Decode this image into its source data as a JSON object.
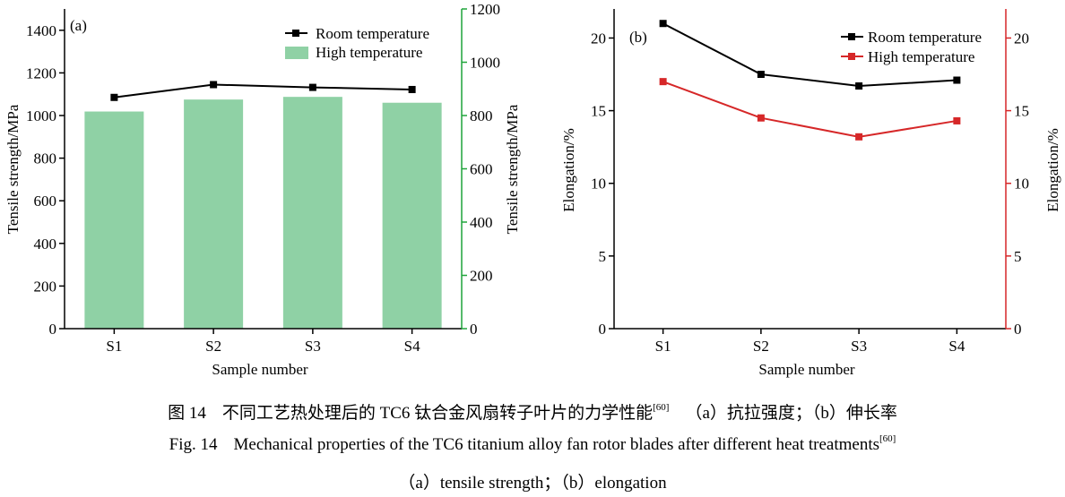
{
  "chart_data": [
    {
      "type": "bar+line",
      "panel_label": "(a)",
      "categories": [
        "S1",
        "S2",
        "S3",
        "S4"
      ],
      "xlabel": "Sample number",
      "ylabel_left": "Tensile strength/MPa",
      "ylabel_right": "Tensile strength/MPa",
      "ylim_left": [
        0,
        1500
      ],
      "yticks_left": [
        "0",
        "200",
        "400",
        "600",
        "800",
        "1000",
        "1200",
        "1400"
      ],
      "ylim_right": [
        0,
        1200
      ],
      "yticks_right": [
        "0",
        "200",
        "400",
        "600",
        "800",
        "1000",
        "1200"
      ],
      "legend_position": "top-right",
      "series": [
        {
          "name": "Room temperature",
          "kind": "line",
          "axis": "left",
          "color": "#000000",
          "values": [
            1085,
            1145,
            1132,
            1122
          ]
        },
        {
          "name": "High temperature",
          "kind": "bar",
          "axis": "right",
          "color": "#8fd1a5",
          "values": [
            815,
            860,
            870,
            848
          ]
        }
      ],
      "right_axis_color": "#1fa43a"
    },
    {
      "type": "line",
      "panel_label": "(b)",
      "categories": [
        "S1",
        "S2",
        "S3",
        "S4"
      ],
      "xlabel": "Sample number",
      "ylabel_left": "Elongation/%",
      "ylabel_right": "Elongation/%",
      "ylim": [
        0,
        22
      ],
      "yticks": [
        "0",
        "5",
        "10",
        "15",
        "20"
      ],
      "legend_position": "top-right",
      "series": [
        {
          "name": "Room temperature",
          "color": "#000000",
          "values": [
            21.0,
            17.5,
            16.7,
            17.1
          ]
        },
        {
          "name": "High temperature",
          "color": "#d62728",
          "values": [
            17.0,
            14.5,
            13.2,
            14.3
          ]
        }
      ],
      "right_axis_color": "#d62728"
    }
  ],
  "caption": {
    "cn_fig": "图 14",
    "cn_text": "不同工艺热处理后的 TC6 钛合金风扇转子叶片的力学性能",
    "cn_ref": "[60]",
    "cn_sub": "（a）抗拉强度；（b）伸长率",
    "en_fig": "Fig. 14",
    "en_text": "Mechanical properties of the TC6 titanium alloy fan rotor blades after different heat treatments",
    "en_ref": "[60]",
    "en_sub": "（a）tensile strength；（b）elongation"
  }
}
